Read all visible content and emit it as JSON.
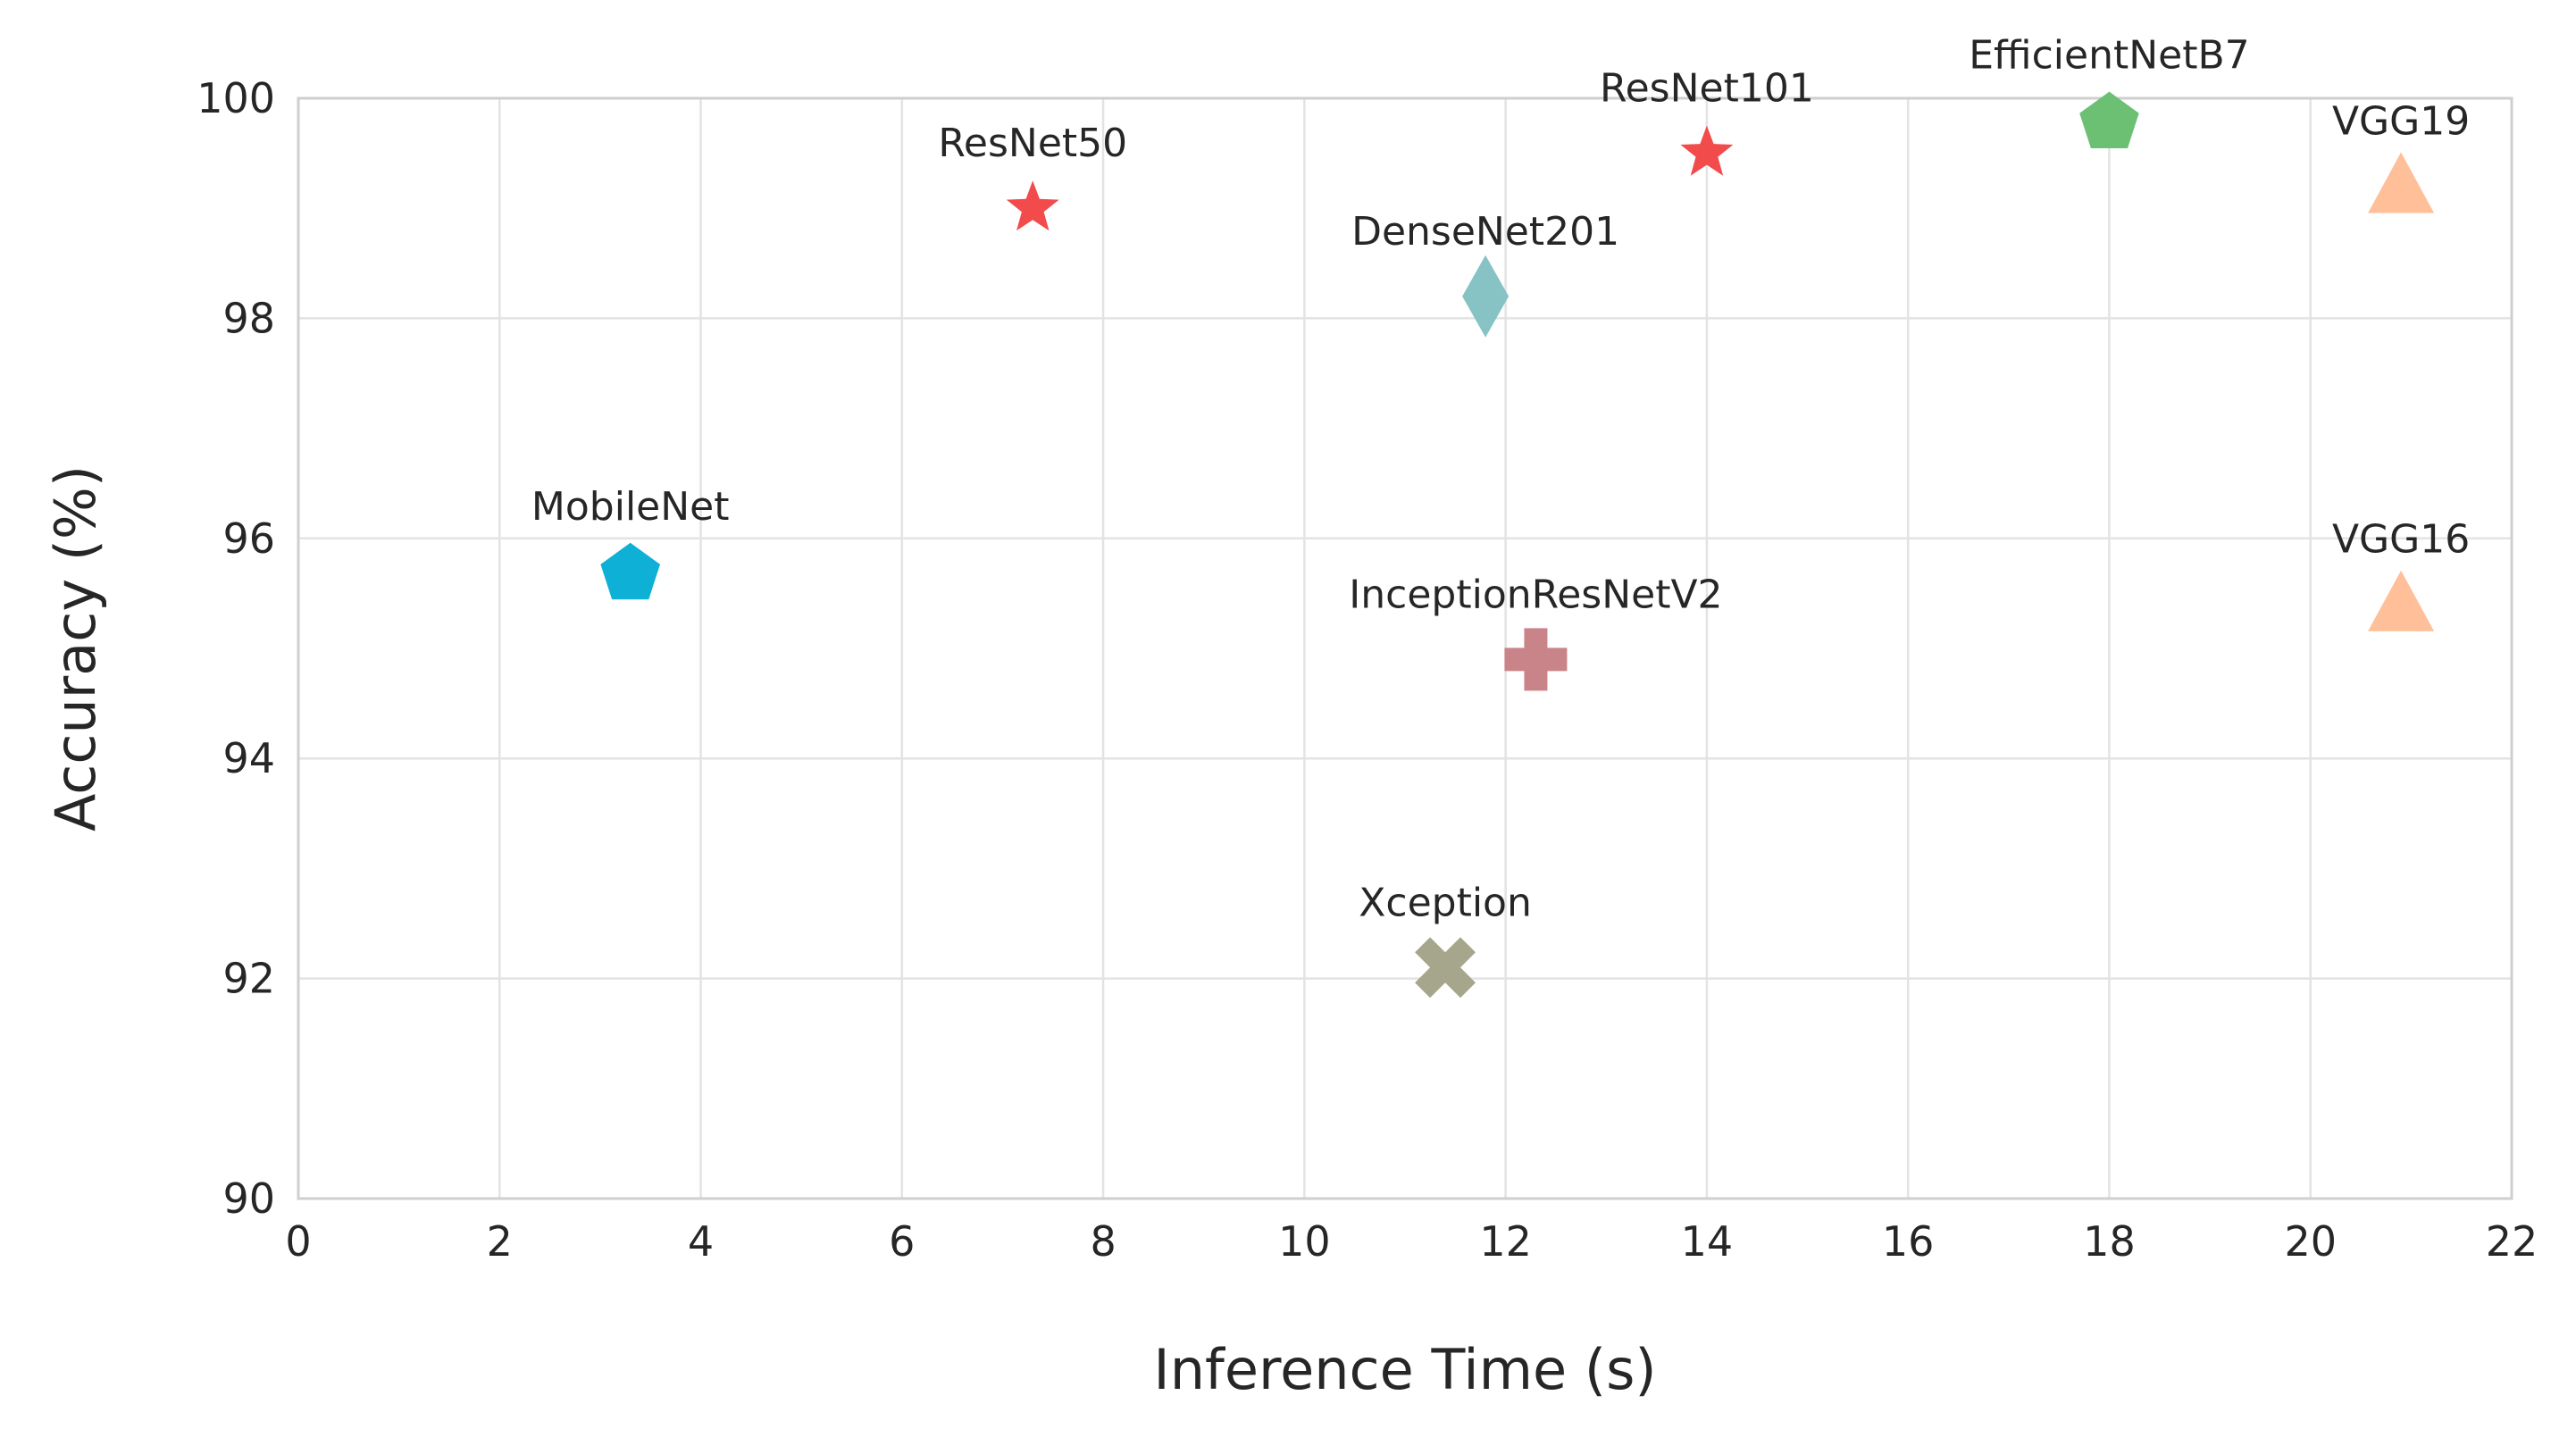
{
  "chart_data": {
    "type": "scatter",
    "title": "",
    "xlabel": "Inference Time (s)",
    "ylabel": "Accuracy (%)",
    "xlim": [
      0,
      22
    ],
    "ylim": [
      90,
      100
    ],
    "xticks": [
      0,
      2,
      4,
      6,
      8,
      10,
      12,
      14,
      16,
      18,
      20,
      22
    ],
    "yticks": [
      90,
      92,
      94,
      96,
      98,
      100
    ],
    "grid": true,
    "points": [
      {
        "name": "ResNet50",
        "x": 7.3,
        "y": 99.0,
        "marker": "star",
        "color": "#f24b4b"
      },
      {
        "name": "ResNet101",
        "x": 14.0,
        "y": 99.5,
        "marker": "star",
        "color": "#f24b4b"
      },
      {
        "name": "EfficientNetB7",
        "x": 18.0,
        "y": 99.8,
        "marker": "pentagon",
        "color": "#6cc073"
      },
      {
        "name": "VGG19",
        "x": 20.9,
        "y": 99.2,
        "marker": "triangle",
        "color": "#ffbf99"
      },
      {
        "name": "DenseNet201",
        "x": 11.8,
        "y": 98.2,
        "marker": "diamond",
        "color": "#87c3c5"
      },
      {
        "name": "MobileNet",
        "x": 3.3,
        "y": 95.7,
        "marker": "pentagon",
        "color": "#0eb0d6"
      },
      {
        "name": "VGG16",
        "x": 20.9,
        "y": 95.4,
        "marker": "triangle",
        "color": "#ffbf99"
      },
      {
        "name": "InceptionResNetV2",
        "x": 12.3,
        "y": 94.9,
        "marker": "plus",
        "color": "#c98489"
      },
      {
        "name": "Xception",
        "x": 11.4,
        "y": 92.1,
        "marker": "x",
        "color": "#a6a68c"
      }
    ]
  }
}
